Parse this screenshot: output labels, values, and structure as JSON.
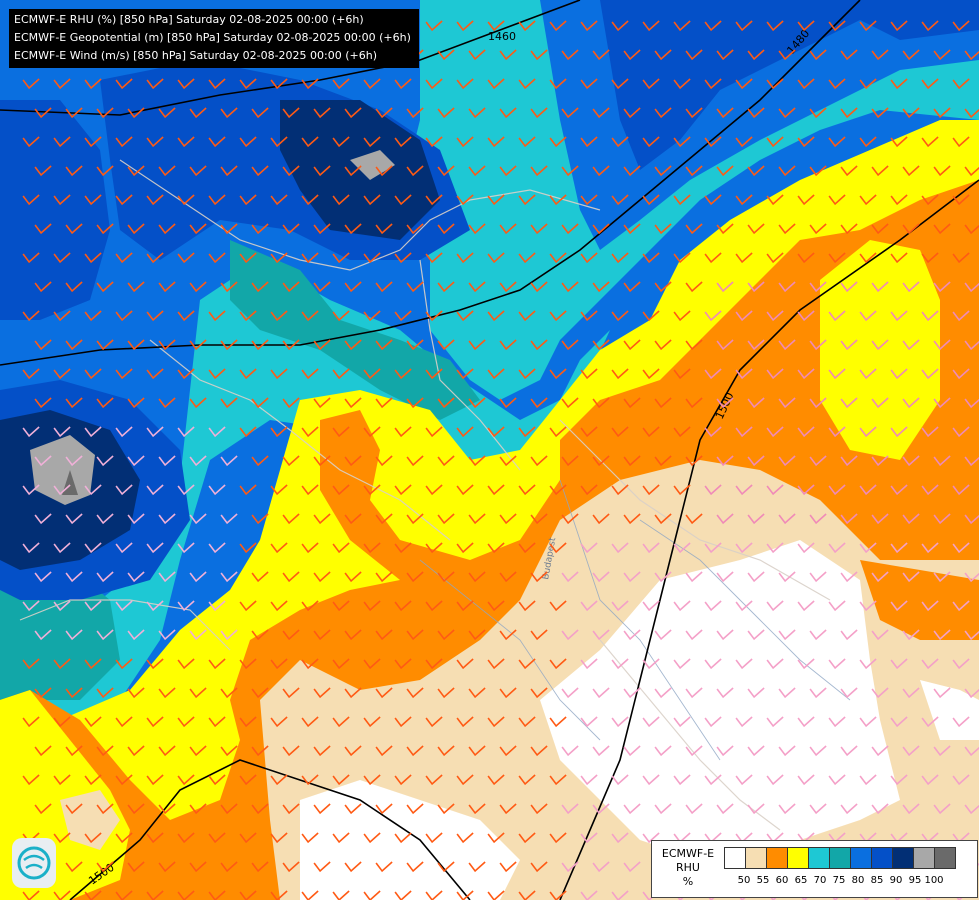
{
  "titles": [
    "ECMWF-E RHU (%) [850 hPa] Saturday 02-08-2025 00:00 (+6h)",
    "ECMWF-E Geopotential (m) [850 hPa] Saturday 02-08-2025 00:00 (+6h)",
    "ECMWF-E Wind (m/s) [850 hPa] Saturday 02-08-2025 00:00 (+6h)"
  ],
  "contour_labels": [
    "1460",
    "1480",
    "1500",
    "1500"
  ],
  "legend": {
    "line1": "ECMWF-E",
    "line2": "RHU",
    "line3": "%",
    "ticks": [
      "50",
      "55",
      "60",
      "65",
      "70",
      "75",
      "80",
      "85",
      "90",
      "95",
      "100"
    ],
    "colors": [
      "#ffffff",
      "#f6deb3",
      "#ff8c00",
      "#ffff00",
      "#1ec8d4",
      "#12a7a8",
      "#0a6fe0",
      "#0450c8",
      "#022f75",
      "#a8a8a8",
      "#6a6a6a"
    ]
  },
  "city_label": "Budapest",
  "logo_icon": "ecmwf-logo-icon"
}
